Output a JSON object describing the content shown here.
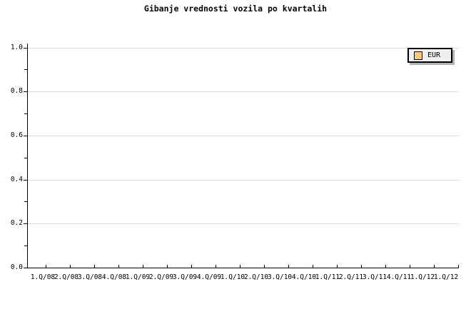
{
  "chart_data": {
    "type": "line",
    "title": "Gibanje vrednosti vozila po kvartalih",
    "categories": [
      "1.Q/08",
      "2.Q/08",
      "3.Q/08",
      "4.Q/08",
      "1.Q/09",
      "2.Q/09",
      "3.Q/09",
      "4.Q/09",
      "1.Q/10",
      "2.Q/10",
      "3.Q/10",
      "4.Q/10",
      "1.Q/11",
      "2.Q/11",
      "3.Q/11",
      "4.Q/11",
      "1.Q/12",
      "1.Q/12"
    ],
    "xlabel": "",
    "ylabel": "",
    "ylim": [
      0.0,
      1.0
    ],
    "y_major_ticks": [
      "0.0",
      "0.2",
      "0.4",
      "0.6",
      "0.8",
      "1.0"
    ],
    "y_minor_tick_step": 0.1,
    "grid": "horizontal-major",
    "series": [
      {
        "name": "EUR",
        "values": [],
        "swatch_color": "#fcc870"
      }
    ],
    "legend_position": "top-right",
    "colors": {
      "background": "#ffffff",
      "axis": "#000000",
      "gridline": "#dddddd",
      "title_text": "#000000",
      "legend_bg": "#efefef",
      "legend_border": "#000000",
      "legend_shadow": "#b2b2b2",
      "series_eur": "#fcc870"
    }
  }
}
